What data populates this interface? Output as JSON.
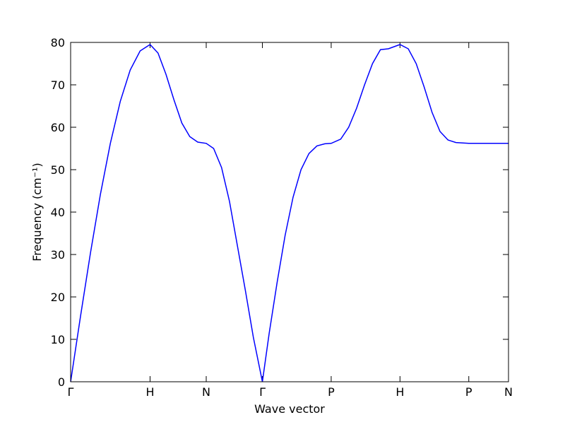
{
  "chart_data": {
    "type": "line",
    "xlabel": "Wave vector",
    "ylabel": "Frequency (cm⁻¹)",
    "xlim": [
      0,
      5.512
    ],
    "ylim": [
      0,
      80
    ],
    "xticks": [
      {
        "value": 0,
        "label": "Γ"
      },
      {
        "value": 1,
        "label": "H"
      },
      {
        "value": 1.707,
        "label": "N"
      },
      {
        "value": 2.414,
        "label": "Γ"
      },
      {
        "value": 3.28,
        "label": "P"
      },
      {
        "value": 4.146,
        "label": "H"
      },
      {
        "value": 5.012,
        "label": "P"
      },
      {
        "value": 5.512,
        "label": "N"
      }
    ],
    "yticks": [
      0,
      10,
      20,
      30,
      40,
      50,
      60,
      70,
      80
    ],
    "x": [
      0,
      0.125,
      0.25,
      0.375,
      0.5,
      0.625,
      0.75,
      0.875,
      1,
      1.1,
      1.2,
      1.3,
      1.4,
      1.5,
      1.6,
      1.707,
      1.8,
      1.9,
      2.0,
      2.1,
      2.2,
      2.3,
      2.414,
      2.5,
      2.6,
      2.7,
      2.8,
      2.9,
      3.0,
      3.1,
      3.2,
      3.28,
      3.4,
      3.5,
      3.6,
      3.7,
      3.8,
      3.9,
      4.0,
      4.146,
      4.25,
      4.35,
      4.45,
      4.55,
      4.65,
      4.75,
      4.85,
      5.012,
      5.2,
      5.512
    ],
    "series": [
      {
        "color": "#0000ff",
        "values": [
          0,
          15.5,
          30.4,
          44.2,
          56.2,
          66.1,
          73.5,
          78.0,
          79.5,
          77.5,
          72.5,
          66.5,
          61.0,
          57.8,
          56.5,
          56.2,
          55.0,
          50.5,
          42.5,
          32.0,
          21.5,
          10.5,
          0,
          11.5,
          23.5,
          34.5,
          43.5,
          50.0,
          53.8,
          55.6,
          56.1,
          56.2,
          57.2,
          60.0,
          64.5,
          70.0,
          75.0,
          78.3,
          78.5,
          79.5,
          78.5,
          75.0,
          69.5,
          63.5,
          59.0,
          57.0,
          56.4,
          56.2,
          56.2,
          56.2
        ]
      }
    ]
  }
}
